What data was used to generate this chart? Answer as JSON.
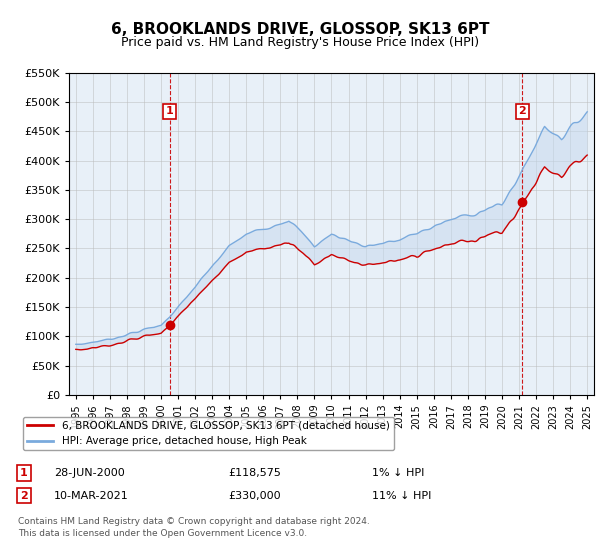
{
  "title": "6, BROOKLANDS DRIVE, GLOSSOP, SK13 6PT",
  "subtitle": "Price paid vs. HM Land Registry's House Price Index (HPI)",
  "red_label": "6, BROOKLANDS DRIVE, GLOSSOP, SK13 6PT (detached house)",
  "blue_label": "HPI: Average price, detached house, High Peak",
  "point1_date": "28-JUN-2000",
  "point1_price": 118575,
  "point1_x": 2000.5,
  "point1_hpi_diff": "1% ↓ HPI",
  "point2_date": "10-MAR-2021",
  "point2_price": 330000,
  "point2_x": 2021.2,
  "point2_hpi_diff": "11% ↓ HPI",
  "footnote1": "Contains HM Land Registry data © Crown copyright and database right 2024.",
  "footnote2": "This data is licensed under the Open Government Licence v3.0.",
  "ylim": [
    0,
    550000
  ],
  "yticks": [
    0,
    50000,
    100000,
    150000,
    200000,
    250000,
    300000,
    350000,
    400000,
    450000,
    500000,
    550000
  ],
  "xlim_start": 1994.6,
  "xlim_end": 2025.4,
  "plot_bg": "#e8f0f8",
  "red_color": "#cc0000",
  "blue_color": "#7aaadd",
  "fill_color": "#c5d8ee",
  "grid_color": "#bbbbbb",
  "vline_color": "#cc0000",
  "marker_box_color": "#cc0000",
  "title_fontsize": 11,
  "subtitle_fontsize": 9
}
